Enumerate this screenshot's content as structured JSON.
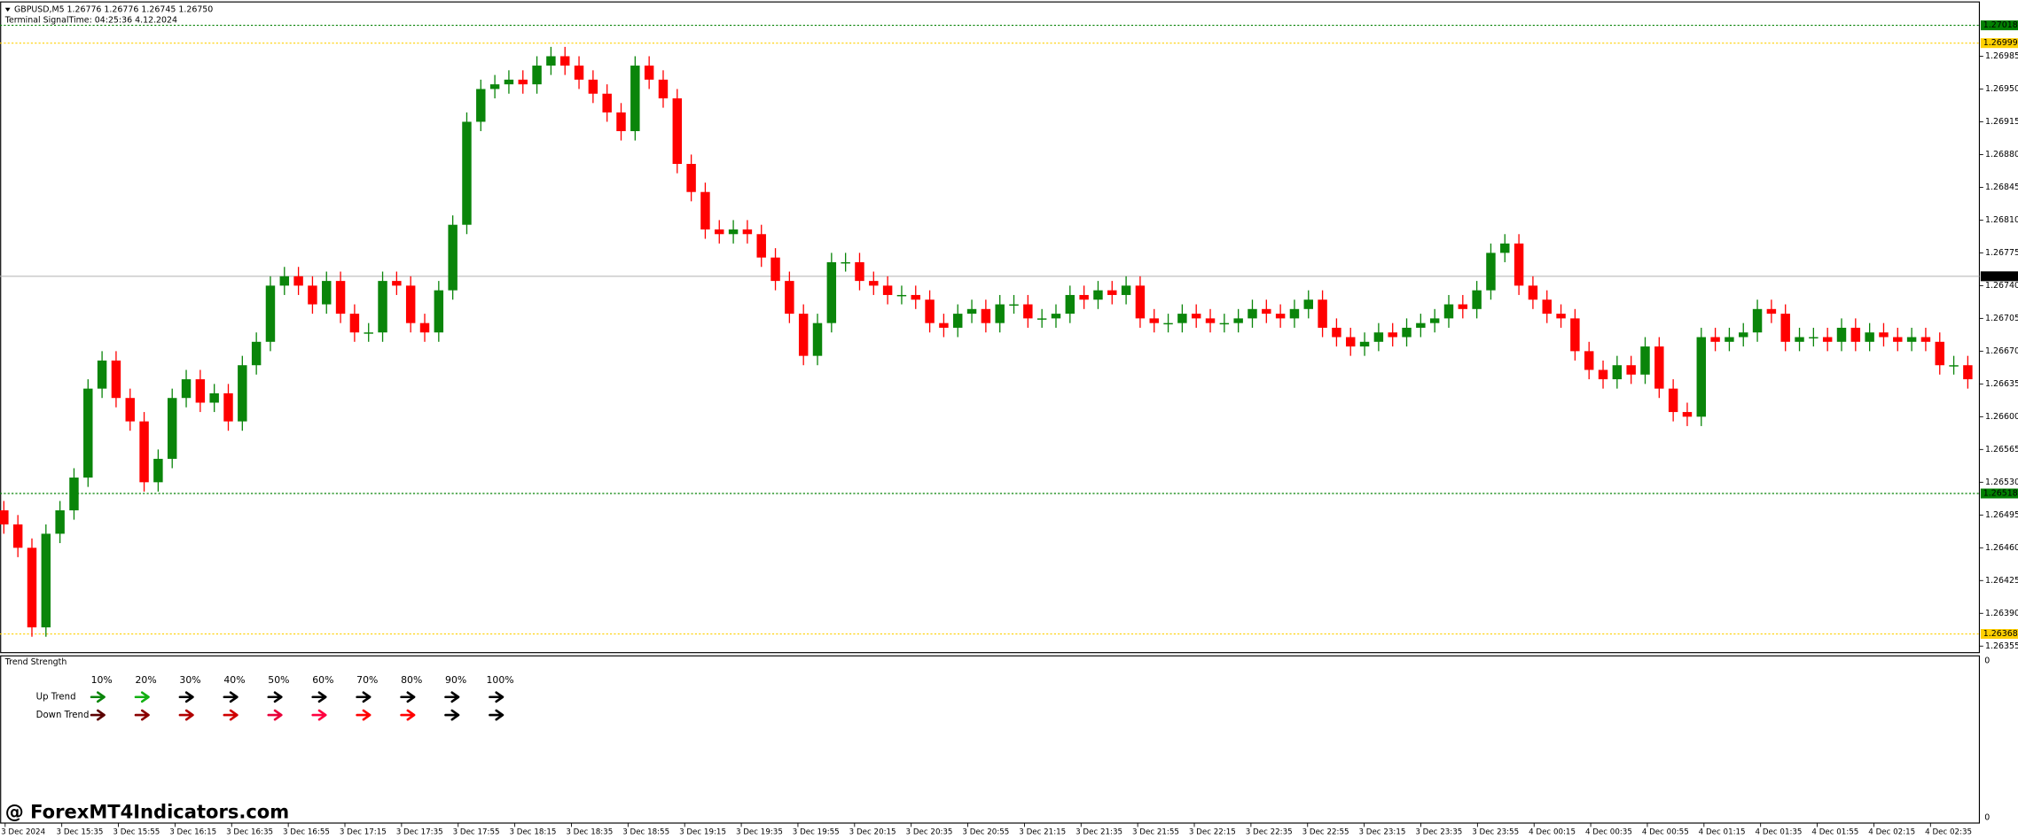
{
  "chart_data": {
    "type": "candlestick",
    "title": "GBPUSD,M5",
    "header_values": "1.26776 1.26776 1.26745 1.26750",
    "signal_time": "Terminal SignalTime: 04:25:36   4.12.2024",
    "up_color": "#0a850a",
    "down_color": "#ff0000",
    "open": [
      1.265,
      1.26485,
      1.2646,
      1.26375,
      1.26475,
      1.265,
      1.26535,
      1.2663,
      1.2666,
      1.2662,
      1.26595,
      1.2653,
      1.26555,
      1.2662,
      1.2664,
      1.26615,
      1.26625,
      1.26595,
      1.26655,
      1.2668,
      1.2674,
      1.2675,
      1.2674,
      1.2672,
      1.26745,
      1.2671,
      1.2669,
      1.2669,
      1.26745,
      1.2674,
      1.267,
      1.2669,
      1.26735,
      1.26805,
      1.26915,
      1.2695,
      1.26955,
      1.2696,
      1.26955,
      1.26975,
      1.26985,
      1.26975,
      1.2696,
      1.26945,
      1.26925,
      1.26905,
      1.26975,
      1.2696,
      1.2694,
      1.2687,
      1.2684,
      1.268,
      1.26795,
      1.268,
      1.26795,
      1.2677,
      1.26745,
      1.2671,
      1.26665,
      1.267,
      1.26765,
      1.26765,
      1.26745,
      1.2674,
      1.2673,
      1.2673,
      1.26725,
      1.267,
      1.26695,
      1.2671,
      1.26715,
      1.267,
      1.2672,
      1.2672,
      1.26705,
      1.26705,
      1.2671,
      1.2673,
      1.26725,
      1.26735,
      1.2673,
      1.2674,
      1.26705,
      1.267,
      1.267,
      1.2671,
      1.26705,
      1.267,
      1.267,
      1.26705,
      1.26715,
      1.2671,
      1.26705,
      1.26715,
      1.26725,
      1.26695,
      1.26685,
      1.26675,
      1.2668,
      1.2669,
      1.26685,
      1.26695,
      1.267,
      1.26705,
      1.2672,
      1.26715,
      1.26735,
      1.26775,
      1.26785,
      1.2674,
      1.26725,
      1.2671,
      1.26705,
      1.2667,
      1.2665,
      1.2664,
      1.26655,
      1.26645,
      1.26675,
      1.2663,
      1.26605,
      1.266,
      1.26685,
      1.2668,
      1.26685,
      1.2669,
      1.26715,
      1.2671,
      1.2668,
      1.26685,
      1.26685,
      1.2668,
      1.26695,
      1.2668,
      1.2669,
      1.26685,
      1.2668,
      1.26685,
      1.2668,
      1.26655,
      1.26655
    ],
    "high": [
      1.2651,
      1.26495,
      1.2647,
      1.26485,
      1.2651,
      1.26545,
      1.2664,
      1.2667,
      1.2667,
      1.2663,
      1.26605,
      1.26565,
      1.2663,
      1.2665,
      1.2665,
      1.26635,
      1.26635,
      1.26665,
      1.2669,
      1.2675,
      1.2676,
      1.2676,
      1.2675,
      1.26755,
      1.26755,
      1.2672,
      1.267,
      1.26755,
      1.26755,
      1.2675,
      1.2671,
      1.26745,
      1.26815,
      1.26925,
      1.2696,
      1.26965,
      1.2697,
      1.2697,
      1.26985,
      1.26995,
      1.26995,
      1.26985,
      1.2697,
      1.26955,
      1.26935,
      1.26985,
      1.26985,
      1.2697,
      1.2695,
      1.2688,
      1.2685,
      1.2681,
      1.2681,
      1.2681,
      1.26805,
      1.2678,
      1.26755,
      1.2672,
      1.2671,
      1.26775,
      1.26775,
      1.26775,
      1.26755,
      1.2675,
      1.2674,
      1.2674,
      1.26735,
      1.2671,
      1.2672,
      1.26725,
      1.26725,
      1.2673,
      1.2673,
      1.2673,
      1.26715,
      1.2672,
      1.2674,
      1.2674,
      1.26745,
      1.26745,
      1.2675,
      1.2675,
      1.26715,
      1.2671,
      1.2672,
      1.2672,
      1.26715,
      1.2671,
      1.26715,
      1.26725,
      1.26725,
      1.2672,
      1.26725,
      1.26735,
      1.26735,
      1.26705,
      1.26695,
      1.2669,
      1.267,
      1.267,
      1.26705,
      1.2671,
      1.26715,
      1.2673,
      1.2673,
      1.26745,
      1.26785,
      1.26795,
      1.26795,
      1.2675,
      1.26735,
      1.2672,
      1.26715,
      1.2668,
      1.2666,
      1.26665,
      1.26665,
      1.26685,
      1.26685,
      1.2664,
      1.26615,
      1.26695,
      1.26695,
      1.26695,
      1.267,
      1.26725,
      1.26725,
      1.2672,
      1.26695,
      1.26695,
      1.26695,
      1.26705,
      1.26705,
      1.267,
      1.267,
      1.26695,
      1.26695,
      1.26695,
      1.2669,
      1.26665,
      1.26665
    ],
    "low": [
      1.26475,
      1.2645,
      1.26365,
      1.26365,
      1.26465,
      1.2649,
      1.26525,
      1.2662,
      1.2661,
      1.26585,
      1.2652,
      1.2652,
      1.26545,
      1.2661,
      1.26605,
      1.26605,
      1.26585,
      1.26585,
      1.26645,
      1.2667,
      1.2673,
      1.2673,
      1.2671,
      1.2671,
      1.267,
      1.2668,
      1.2668,
      1.2668,
      1.2673,
      1.2669,
      1.2668,
      1.2668,
      1.26725,
      1.26795,
      1.26905,
      1.2694,
      1.26945,
      1.26945,
      1.26945,
      1.26965,
      1.26965,
      1.2695,
      1.26935,
      1.26915,
      1.26895,
      1.26895,
      1.2695,
      1.2693,
      1.2686,
      1.2683,
      1.2679,
      1.26785,
      1.26785,
      1.26785,
      1.2676,
      1.26735,
      1.267,
      1.26655,
      1.26655,
      1.2669,
      1.26755,
      1.26735,
      1.2673,
      1.2672,
      1.2672,
      1.26715,
      1.2669,
      1.26685,
      1.26685,
      1.267,
      1.2669,
      1.2669,
      1.2671,
      1.26695,
      1.26695,
      1.26695,
      1.267,
      1.26715,
      1.26715,
      1.2672,
      1.2672,
      1.26695,
      1.2669,
      1.2669,
      1.2669,
      1.26695,
      1.2669,
      1.2669,
      1.2669,
      1.26695,
      1.267,
      1.26695,
      1.26695,
      1.26705,
      1.26685,
      1.26675,
      1.26665,
      1.26665,
      1.2667,
      1.26675,
      1.26675,
      1.26685,
      1.2669,
      1.26695,
      1.26705,
      1.26705,
      1.26725,
      1.26765,
      1.2673,
      1.26715,
      1.267,
      1.26695,
      1.2666,
      1.2664,
      1.2663,
      1.2663,
      1.26635,
      1.26635,
      1.2662,
      1.26595,
      1.2659,
      1.2659,
      1.2667,
      1.2667,
      1.26675,
      1.2668,
      1.267,
      1.2667,
      1.2667,
      1.26675,
      1.2667,
      1.2667,
      1.2667,
      1.2667,
      1.26675,
      1.2667,
      1.2667,
      1.2667,
      1.26645,
      1.26645,
      1.2663
    ],
    "close": [
      1.26485,
      1.2646,
      1.26375,
      1.26475,
      1.265,
      1.26535,
      1.2663,
      1.2666,
      1.2662,
      1.26595,
      1.2653,
      1.26555,
      1.2662,
      1.2664,
      1.26615,
      1.26625,
      1.26595,
      1.26655,
      1.2668,
      1.2674,
      1.2675,
      1.2674,
      1.2672,
      1.26745,
      1.2671,
      1.2669,
      1.2669,
      1.26745,
      1.2674,
      1.267,
      1.2669,
      1.26735,
      1.26805,
      1.26915,
      1.2695,
      1.26955,
      1.2696,
      1.26955,
      1.26975,
      1.26985,
      1.26975,
      1.2696,
      1.26945,
      1.26925,
      1.26905,
      1.26975,
      1.2696,
      1.2694,
      1.2687,
      1.2684,
      1.268,
      1.26795,
      1.268,
      1.26795,
      1.2677,
      1.26745,
      1.2671,
      1.26665,
      1.267,
      1.26765,
      1.26765,
      1.26745,
      1.2674,
      1.2673,
      1.2673,
      1.26725,
      1.267,
      1.26695,
      1.2671,
      1.26715,
      1.267,
      1.2672,
      1.2672,
      1.26705,
      1.26705,
      1.2671,
      1.2673,
      1.26725,
      1.26735,
      1.2673,
      1.2674,
      1.26705,
      1.267,
      1.267,
      1.2671,
      1.26705,
      1.267,
      1.267,
      1.26705,
      1.26715,
      1.2671,
      1.26705,
      1.26715,
      1.26725,
      1.26695,
      1.26685,
      1.26675,
      1.2668,
      1.2669,
      1.26685,
      1.26695,
      1.267,
      1.26705,
      1.2672,
      1.26715,
      1.26735,
      1.26775,
      1.26785,
      1.2674,
      1.26725,
      1.2671,
      1.26705,
      1.2667,
      1.2665,
      1.2664,
      1.26655,
      1.26645,
      1.26675,
      1.2663,
      1.26605,
      1.266,
      1.26685,
      1.2668,
      1.26685,
      1.2669,
      1.26715,
      1.2671,
      1.2668,
      1.26685,
      1.26685,
      1.2668,
      1.26695,
      1.2668,
      1.2669,
      1.26685,
      1.2668,
      1.26685,
      1.2668,
      1.26655,
      1.26655,
      1.2664
    ],
    "ylim": [
      1.26348,
      1.27043
    ],
    "yticks": [
      1.26985,
      {
        "value": 1.2695,
        "label": "1.26950"
      },
      1.26915,
      {
        "value": 1.2688,
        "label": "1.26880"
      },
      1.26845,
      {
        "value": 1.2681,
        "label": "1.26810"
      },
      1.26775,
      {
        "value": 1.2674,
        "label": "1.26740"
      },
      1.26705,
      {
        "value": 1.2667,
        "label": "1.26670"
      },
      1.26635,
      {
        "value": 1.266,
        "label": "1.26600"
      },
      1.26565,
      {
        "value": 1.2653,
        "label": "1.26530"
      },
      1.26495,
      {
        "value": 1.2646,
        "label": "1.26460"
      },
      1.26425,
      {
        "value": 1.2639,
        "label": "1.26390"
      },
      1.26355
    ],
    "levels": [
      {
        "value": 1.27018,
        "color": "#008000",
        "style": "dotted"
      },
      {
        "value": 1.26999,
        "color": "#ffd000",
        "style": "dotted"
      },
      {
        "value": {
          "value": 1.2675,
          "label": "1.26750"
        },
        "color": "#000000",
        "style": "solid"
      },
      {
        "value": 1.26518,
        "color": "#008000",
        "style": "dotted"
      },
      {
        "value": 1.26368,
        "color": "#ffd000",
        "style": "dotted"
      }
    ],
    "x_labels": [
      "3 Dec 2024",
      "3 Dec 15:35",
      "3 Dec 15:55",
      "3 Dec 16:15",
      "3 Dec 16:35",
      "3 Dec 16:55",
      "3 Dec 17:15",
      "3 Dec 17:35",
      "3 Dec 17:55",
      "3 Dec 18:15",
      "3 Dec 18:35",
      "3 Dec 18:55",
      "3 Dec 19:15",
      "3 Dec 19:35",
      "3 Dec 19:55",
      "3 Dec 20:15",
      "3 Dec 20:35",
      "3 Dec 20:55",
      "3 Dec 21:15",
      "3 Dec 21:35",
      "3 Dec 21:55",
      "3 Dec 22:15",
      "3 Dec 22:35",
      "3 Dec 22:55",
      "3 Dec 23:15",
      "3 Dec 23:35",
      "3 Dec 23:55",
      "4 Dec 00:15",
      "4 Dec 00:35",
      "4 Dec 00:55",
      "4 Dec 01:15",
      "4 Dec 01:35",
      "4 Dec 01:55",
      "4 Dec 02:15",
      "4 Dec 02:35"
    ],
    "indicator": {
      "title": "Trend Strength",
      "levels": [
        "10%",
        "20%",
        "30%",
        "40%",
        "50%",
        "60%",
        "70%",
        "80%",
        "90%",
        "100%"
      ],
      "axis_labels": [
        "0",
        "0"
      ],
      "rows": [
        {
          "name": "Up Trend",
          "color": "#22cc22",
          "arrow_colors": [
            "#0a850a",
            "#12b012",
            "#000000",
            "#000000",
            "#000000",
            "#000000",
            "#000000",
            "#000000",
            "#000000",
            "#000000"
          ]
        },
        {
          "name": "Down Trend",
          "color": "#ff00ff",
          "arrow_colors": [
            "#5a0000",
            "#8a0000",
            "#b00000",
            "#d00000",
            "#e8003a",
            "#ff0040",
            "#ff0000",
            "#ff0000",
            "#000000",
            "#000000"
          ]
        }
      ]
    },
    "watermark": "@ ForexMT4Indicators.com"
  }
}
